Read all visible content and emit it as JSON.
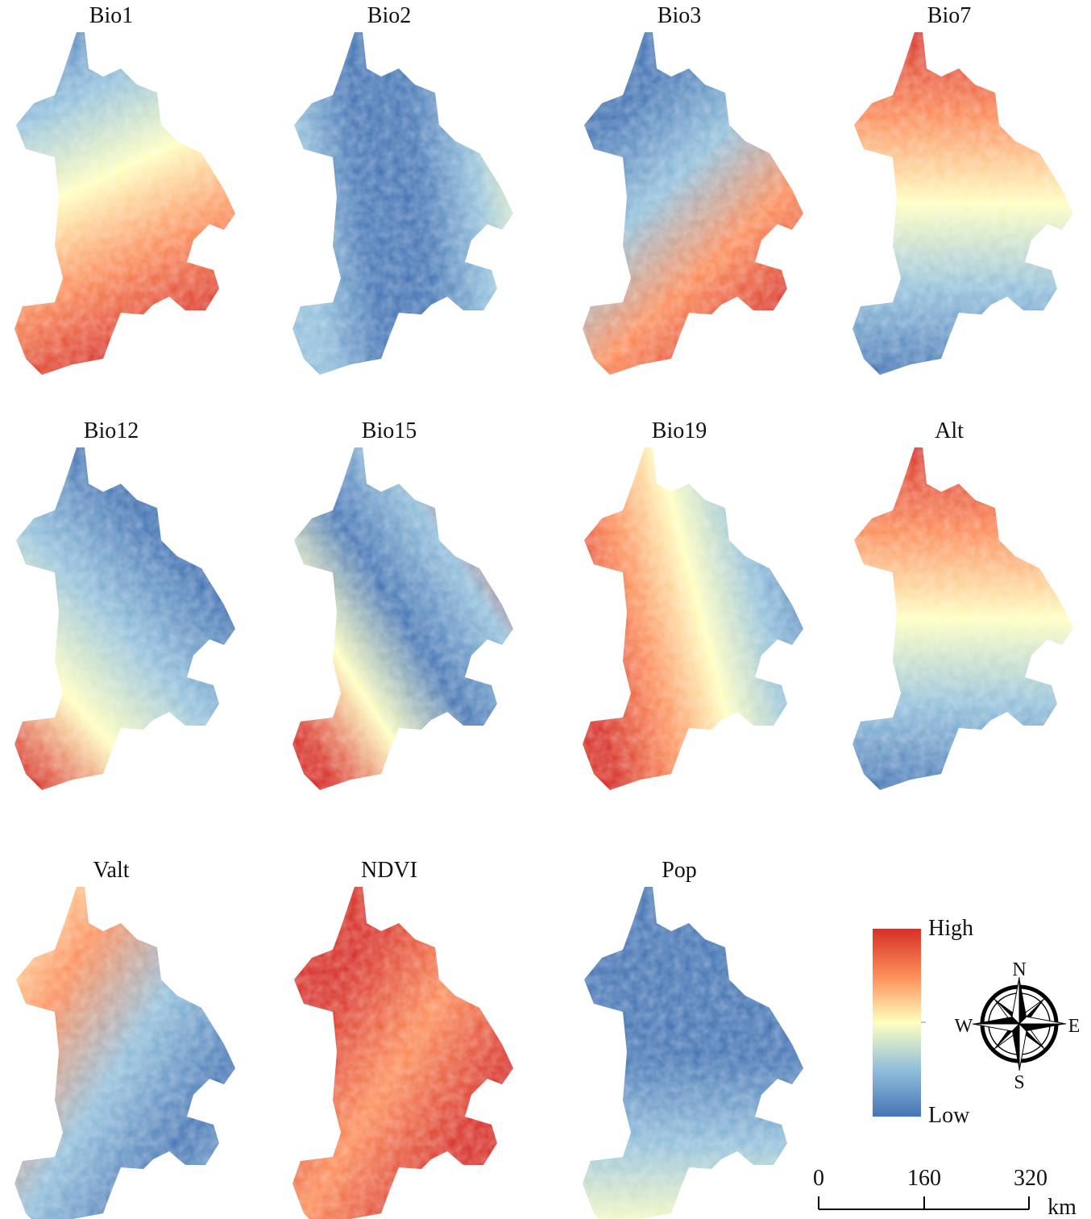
{
  "panels": [
    {
      "title": "Bio1"
    },
    {
      "title": "Bio2"
    },
    {
      "title": "Bio3"
    },
    {
      "title": "Bio7"
    },
    {
      "title": "Bio12"
    },
    {
      "title": "Bio15"
    },
    {
      "title": "Bio19"
    },
    {
      "title": "Alt"
    },
    {
      "title": "Valt"
    },
    {
      "title": "NDVI"
    },
    {
      "title": "Pop"
    }
  ],
  "legend": {
    "high": "High",
    "low": "Low"
  },
  "compass": {
    "n": "N",
    "s": "S",
    "w": "W",
    "e": "E"
  },
  "scale_bar": {
    "labels": [
      "0",
      "160",
      "320"
    ],
    "unit": "km"
  }
}
